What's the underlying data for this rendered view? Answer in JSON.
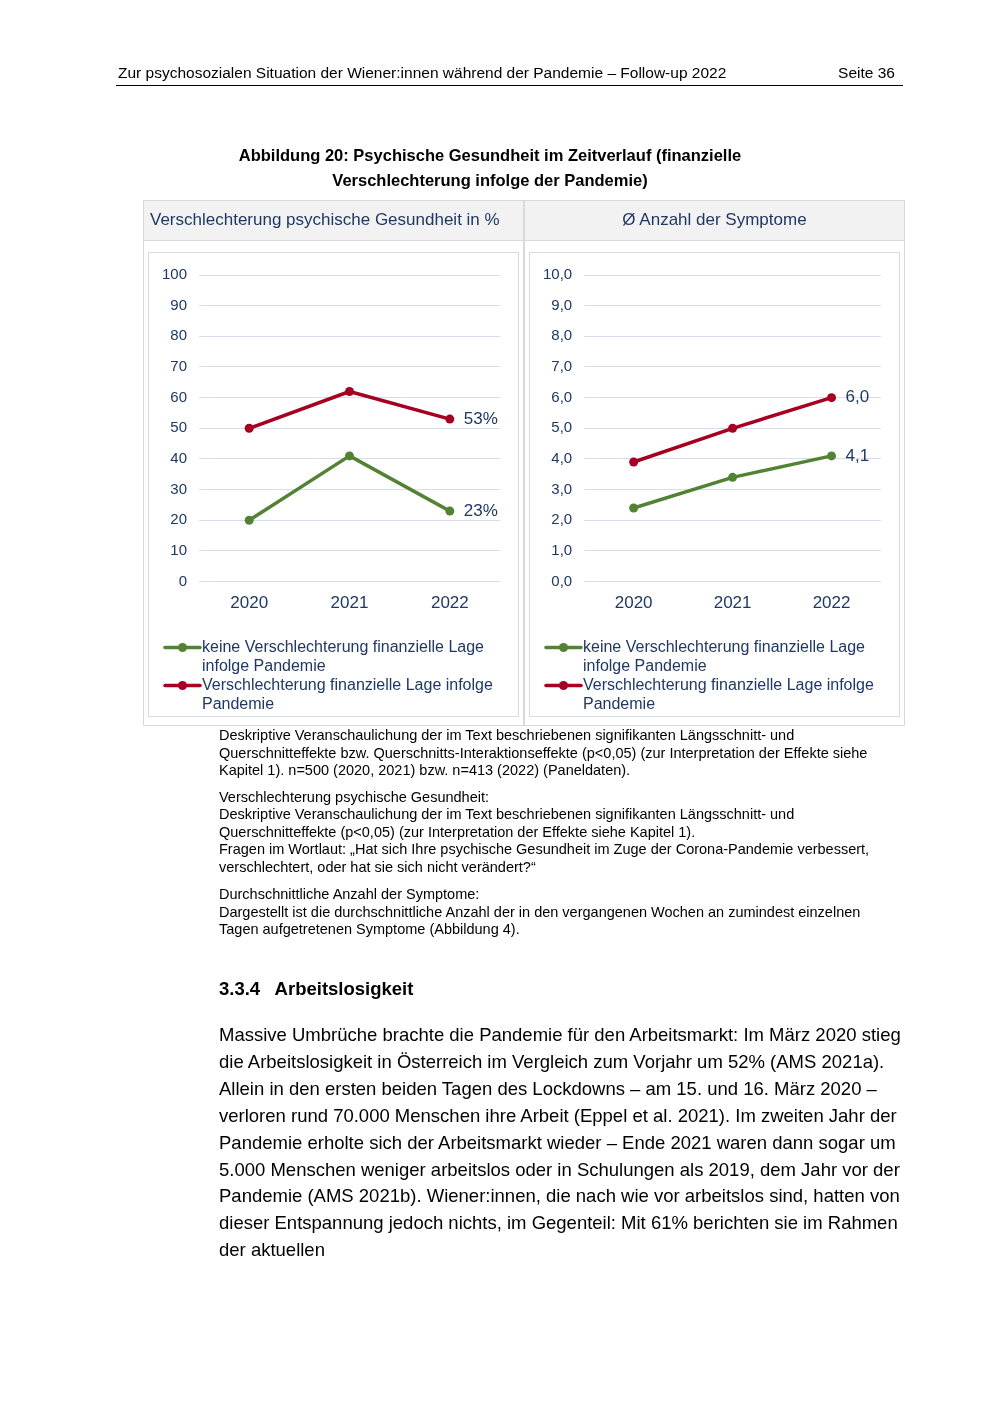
{
  "chart_data": [
    {
      "type": "line",
      "title": "Verschlechterung psychische Gesundheit in %",
      "categories": [
        "2020",
        "2021",
        "2022"
      ],
      "series": [
        {
          "name": "keine Verschlechterung finanzielle Lage infolge Pandemie",
          "color": "#548235",
          "values": [
            20,
            41,
            23
          ],
          "value_labels": [
            null,
            null,
            "23%"
          ]
        },
        {
          "name": "Verschlechterung finanzielle Lage infolge Pandemie",
          "color": "#a50021",
          "values": [
            50,
            62,
            53
          ],
          "value_labels": [
            null,
            null,
            "53%"
          ]
        }
      ],
      "ylim": [
        0,
        100
      ],
      "yticks": [
        0,
        10,
        20,
        30,
        40,
        50,
        60,
        70,
        80,
        90,
        100
      ],
      "grid": "y",
      "legend": "bottom",
      "marker": "circle",
      "line_style": "solid",
      "annotations": [
        "Zur psychosozialen Situation der Wiener:innen während der Pandemie – Follow-up 2022",
        "Seite 36",
        "Abbildung 20: Psychische Gesundheit im Zeitverlauf (finanzielle Verschlechterung infolge der Pandemie)",
        "Deskriptive Veranschaulichung der im Text beschriebenen signifikanten Längsschnitt- und Querschnitteffekte bzw. Querschnitts-Interaktionseffekte (p<0,05) (zur Interpretation der Effekte siehe Kapitel 1). n=500 (2020, 2021) bzw. n=413 (2022) (Paneldaten).",
        "Verschlechterung psychische Gesundheit:",
        "Deskriptive Veranschaulichung der im Text beschriebenen signifikanten Längsschnitt- und Querschnitteffekte (p<0,05) (zur Interpretation der Effekte siehe Kapitel 1).",
        "Fragen im Wortlaut: „Hat sich Ihre psychische Gesundheit im Zuge der Corona-Pandemie verbessert, verschlechtert, oder hat sie sich nicht verändert?“",
        "Durchschnittliche Anzahl der Symptome:",
        "Dargestellt ist die durchschnittliche Anzahl der in den vergangenen Wochen an zumindest einzelnen Tagen aufgetretenen Symptome (Abbildung 4).",
        "3.3.4 Arbeitslosigkeit",
        "Massive Umbrüche brachte die Pandemie für den Arbeitsmarkt: Im März 2020 stieg die Arbeitslosigkeit in Österreich im Vergleich zum Vorjahr um 52% (AMS 2021a). Allein in den ersten beiden Tagen des Lockdowns – am 15. und 16. März 2020 – verloren rund 70.000 Menschen ihre Arbeit (Eppel et al. 2021). Im zweiten Jahr der Pandemie erholte sich der Arbeitsmarkt wieder – Ende 2021 waren dann sogar um 5.000 Menschen weniger arbeitslos oder in Schulungen als 2019, dem Jahr vor der Pandemie (AMS 2021b). Wiener:innen, die nach wie vor arbeitslos sind, hatten von dieser Entspannung jedoch nichts, im Gegenteil: Mit 61% berichten sie im Rahmen der aktuellen"
      ]
    },
    {
      "type": "line",
      "title": "Ø Anzahl der Symptome",
      "categories": [
        "2020",
        "2021",
        "2022"
      ],
      "series": [
        {
          "name": "keine Verschlechterung finanzielle Lage infolge Pandemie",
          "color": "#548235",
          "values": [
            2.4,
            3.4,
            4.1
          ],
          "value_labels": [
            null,
            null,
            "4,1"
          ]
        },
        {
          "name": "Verschlechterung finanzielle Lage infolge Pandemie",
          "color": "#a50021",
          "values": [
            3.9,
            5.0,
            6.0
          ],
          "value_labels": [
            null,
            null,
            "6,0"
          ]
        }
      ],
      "ylim": [
        0,
        10
      ],
      "yticks": [
        {
          "value": 0,
          "label": "0,0"
        },
        {
          "value": 1,
          "label": "1,0"
        },
        {
          "value": 2,
          "label": "2,0"
        },
        {
          "value": 3,
          "label": "3,0"
        },
        {
          "value": 4,
          "label": "4,0"
        },
        {
          "value": 5,
          "label": "5,0"
        },
        {
          "value": 6,
          "label": "6,0"
        },
        {
          "value": 7,
          "label": "7,0"
        },
        {
          "value": 8,
          "label": "8,0"
        },
        {
          "value": 9,
          "label": "9,0"
        },
        {
          "value": 10,
          "label": "10,0"
        }
      ],
      "grid": "y",
      "legend": "bottom",
      "marker": "circle",
      "line_style": "solid"
    }
  ]
}
